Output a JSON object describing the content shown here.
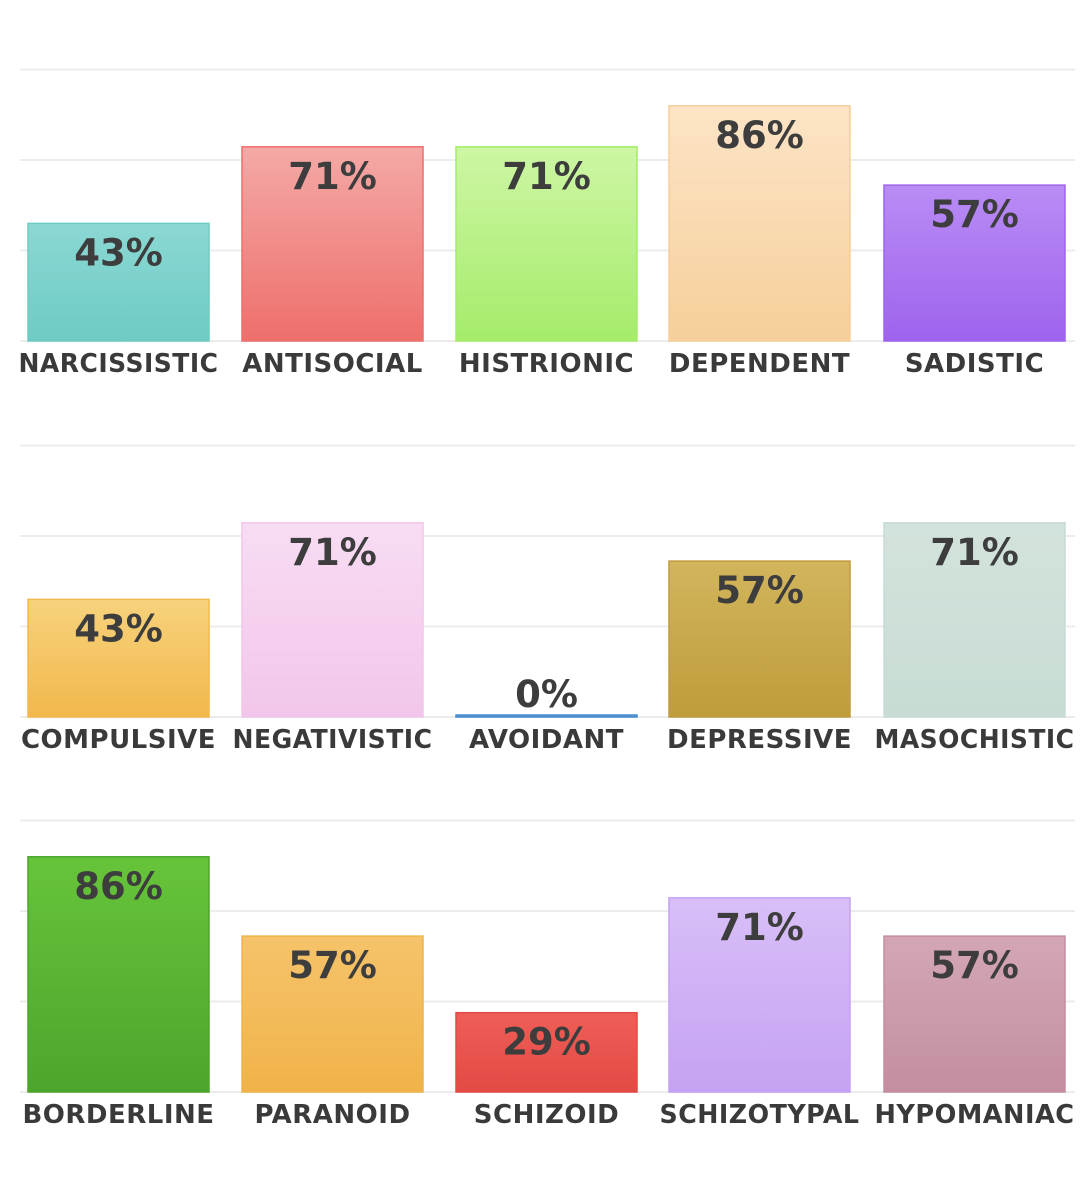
{
  "chart_data": [
    {
      "type": "bar",
      "categories": [
        "NARCISSISTIC",
        "ANTISOCIAL",
        "HISTRIONIC",
        "DEPENDENT",
        "SADISTIC"
      ],
      "values": [
        43,
        71,
        71,
        86,
        57
      ],
      "value_labels": [
        "43%",
        "71%",
        "71%",
        "86%",
        "57%"
      ],
      "colors": [
        [
          "#8bd8d4",
          "#6ecbc4"
        ],
        [
          "#f4a9a6",
          "#ee6f6c"
        ],
        [
          "#cdf6a4",
          "#a5ec6a"
        ],
        [
          "#fce4c6",
          "#f6cf9a"
        ],
        [
          "#b98cf5",
          "#9e63ee"
        ]
      ],
      "ylim": [
        0,
        100
      ],
      "grid": true
    },
    {
      "type": "bar",
      "categories": [
        "COMPULSIVE",
        "NEGATIVISTIC",
        "AVOIDANT",
        "DEPRESSIVE",
        "MASOCHISTIC"
      ],
      "values": [
        43,
        71,
        0,
        57,
        71
      ],
      "value_labels": [
        "43%",
        "71%",
        "0%",
        "57%",
        "71%"
      ],
      "colors": [
        [
          "#f7d27c",
          "#f2b84c"
        ],
        [
          "#f8dcf3",
          "#f2c6ea"
        ],
        [
          "#6fa8dc",
          "#4a8ccd"
        ],
        [
          "#d2b55c",
          "#bf9c3c"
        ],
        [
          "#d3e3dc",
          "#c8dcd4"
        ]
      ],
      "ylim": [
        0,
        100
      ],
      "grid": true
    },
    {
      "type": "bar",
      "categories": [
        "BORDERLINE",
        "PARANOID",
        "SCHIZOID",
        "SCHIZOTYPAL",
        "HYPOMANIAC"
      ],
      "values": [
        86,
        57,
        29,
        71,
        57
      ],
      "value_labels": [
        "86%",
        "57%",
        "29%",
        "71%",
        "57%"
      ],
      "colors": [
        [
          "#66c43a",
          "#4ea52c"
        ],
        [
          "#f6c36a",
          "#f0b34a"
        ],
        [
          "#ef5e57",
          "#e24a44"
        ],
        [
          "#d8bff8",
          "#c6a2f2"
        ],
        [
          "#d3a6b6",
          "#c38ea0"
        ]
      ],
      "ylim": [
        0,
        100
      ],
      "grid": true
    }
  ],
  "colors": {
    "gridline": "#ececec",
    "label_text": "#3a3a3a",
    "value_text": "#3d3d3d"
  }
}
